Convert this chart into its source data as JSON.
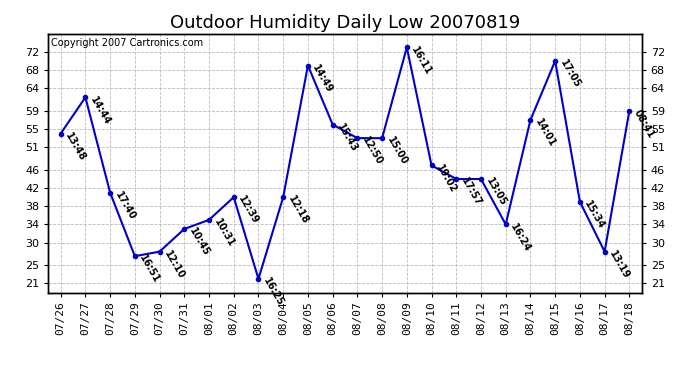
{
  "title": "Outdoor Humidity Daily Low 20070819",
  "copyright": "Copyright 2007 Cartronics.com",
  "dates": [
    "07/26",
    "07/27",
    "07/28",
    "07/29",
    "07/30",
    "07/31",
    "08/01",
    "08/02",
    "08/03",
    "08/04",
    "08/05",
    "08/06",
    "08/07",
    "08/08",
    "08/09",
    "08/10",
    "08/11",
    "08/12",
    "08/13",
    "08/14",
    "08/15",
    "08/16",
    "08/17",
    "08/18"
  ],
  "values": [
    54,
    62,
    41,
    27,
    28,
    33,
    35,
    40,
    22,
    40,
    69,
    56,
    53,
    53,
    73,
    47,
    44,
    44,
    34,
    57,
    70,
    39,
    28,
    59
  ],
  "times": [
    "13:48",
    "14:44",
    "17:40",
    "16:51",
    "12:10",
    "10:45",
    "10:31",
    "12:39",
    "16:25",
    "12:18",
    "14:49",
    "15:43",
    "12:50",
    "15:00",
    "16:11",
    "19:02",
    "17:57",
    "13:05",
    "16:24",
    "14:01",
    "17:05",
    "15:34",
    "13:19",
    "08:41"
  ],
  "line_color": "#0000cc",
  "marker_color": "#0000cc",
  "background_color": "#ffffff",
  "grid_color": "#bbbbbb",
  "ylim": [
    19,
    76
  ],
  "yticks": [
    21,
    25,
    30,
    34,
    38,
    42,
    46,
    51,
    55,
    59,
    64,
    68,
    72
  ],
  "title_fontsize": 13,
  "label_fontsize": 7,
  "copyright_fontsize": 7,
  "tick_fontsize": 8
}
